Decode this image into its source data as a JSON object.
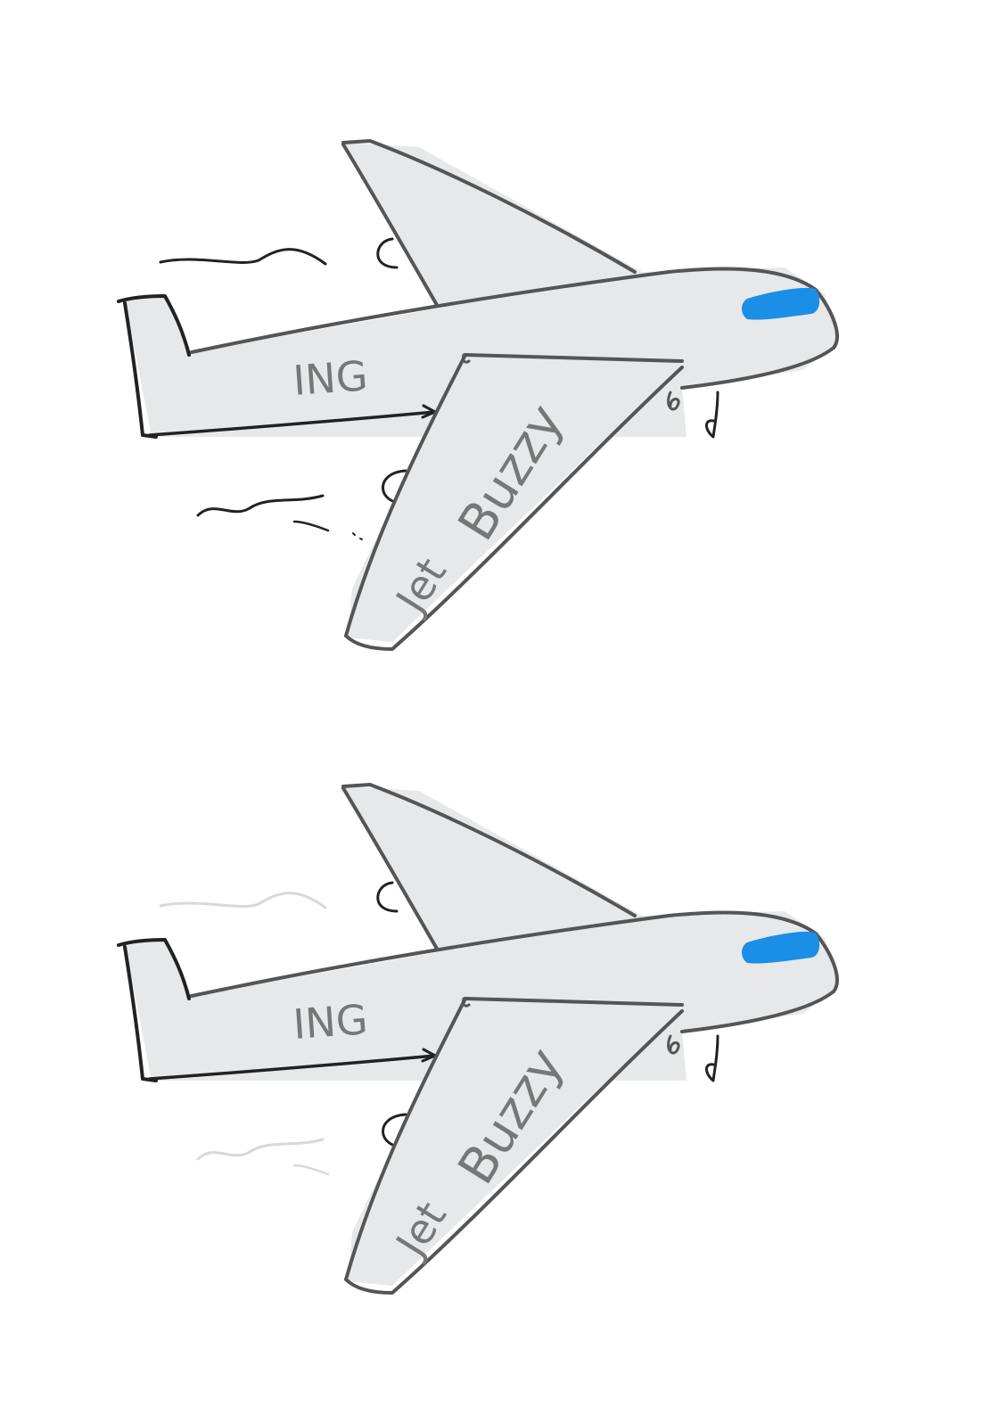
{
  "planes": [
    {
      "body_text": "ING",
      "wing_text_jet": "Jet",
      "wing_text_buzzy": "Buzzy",
      "motion_lines": "dark"
    },
    {
      "body_text": "ING",
      "wing_text_jet": "Jet",
      "wing_text_buzzy": "Buzzy",
      "motion_lines": "faded"
    }
  ],
  "colors": {
    "background": "#ffffff",
    "fill": "#e6e8e9",
    "outline": "#555555",
    "cockpit_window": "#1b8ee6",
    "motion_dark": "#222222",
    "motion_faded": "#d8d8d8",
    "text": "#777777"
  }
}
